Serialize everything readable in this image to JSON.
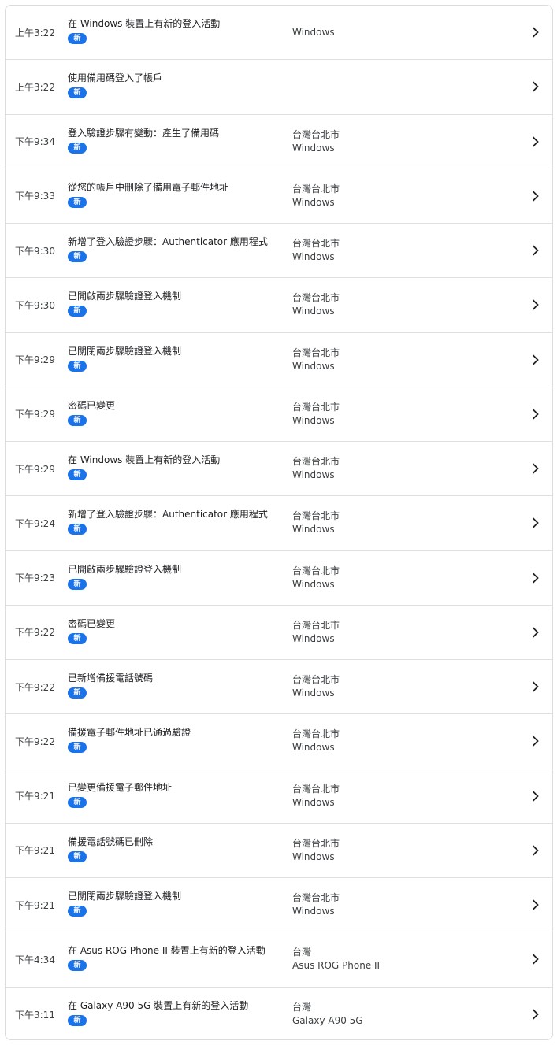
{
  "badge_label": "新",
  "accent_color": "#1a73e8",
  "events": [
    {
      "time": "上午3:22",
      "title": "在 Windows 裝置上有新的登入活動",
      "location": "",
      "device": "Windows"
    },
    {
      "time": "上午3:22",
      "title": "使用備用碼登入了帳戶",
      "location": "",
      "device": ""
    },
    {
      "time": "下午9:34",
      "title": "登入驗證步驟有變動：產生了備用碼",
      "location": "台灣台北市",
      "device": "Windows"
    },
    {
      "time": "下午9:33",
      "title": "從您的帳戶中刪除了備用電子郵件地址",
      "location": "台灣台北市",
      "device": "Windows"
    },
    {
      "time": "下午9:30",
      "title": "新增了登入驗證步驟：Authenticator 應用程式",
      "location": "台灣台北市",
      "device": "Windows"
    },
    {
      "time": "下午9:30",
      "title": "已開啟兩步驟驗證登入機制",
      "location": "台灣台北市",
      "device": "Windows"
    },
    {
      "time": "下午9:29",
      "title": "已關閉兩步驟驗證登入機制",
      "location": "台灣台北市",
      "device": "Windows"
    },
    {
      "time": "下午9:29",
      "title": "密碼已變更",
      "location": "台灣台北市",
      "device": "Windows"
    },
    {
      "time": "下午9:29",
      "title": "在 Windows 裝置上有新的登入活動",
      "location": "台灣台北市",
      "device": "Windows"
    },
    {
      "time": "下午9:24",
      "title": "新增了登入驗證步驟：Authenticator 應用程式",
      "location": "台灣台北市",
      "device": "Windows"
    },
    {
      "time": "下午9:23",
      "title": "已開啟兩步驟驗證登入機制",
      "location": "台灣台北市",
      "device": "Windows"
    },
    {
      "time": "下午9:22",
      "title": "密碼已變更",
      "location": "台灣台北市",
      "device": "Windows"
    },
    {
      "time": "下午9:22",
      "title": "已新增備援電話號碼",
      "location": "台灣台北市",
      "device": "Windows"
    },
    {
      "time": "下午9:22",
      "title": "備援電子郵件地址已通過驗證",
      "location": "台灣台北市",
      "device": "Windows"
    },
    {
      "time": "下午9:21",
      "title": "已變更備援電子郵件地址",
      "location": "台灣台北市",
      "device": "Windows"
    },
    {
      "time": "下午9:21",
      "title": "備援電話號碼已刪除",
      "location": "台灣台北市",
      "device": "Windows"
    },
    {
      "time": "下午9:21",
      "title": "已關閉兩步驟驗證登入機制",
      "location": "台灣台北市",
      "device": "Windows"
    },
    {
      "time": "下午4:34",
      "title": "在 Asus ROG Phone II 裝置上有新的登入活動",
      "location": "台灣",
      "device": "Asus ROG Phone II"
    },
    {
      "time": "下午3:11",
      "title": "在 Galaxy A90 5G 裝置上有新的登入活動",
      "location": "台灣",
      "device": "Galaxy A90 5G"
    }
  ]
}
